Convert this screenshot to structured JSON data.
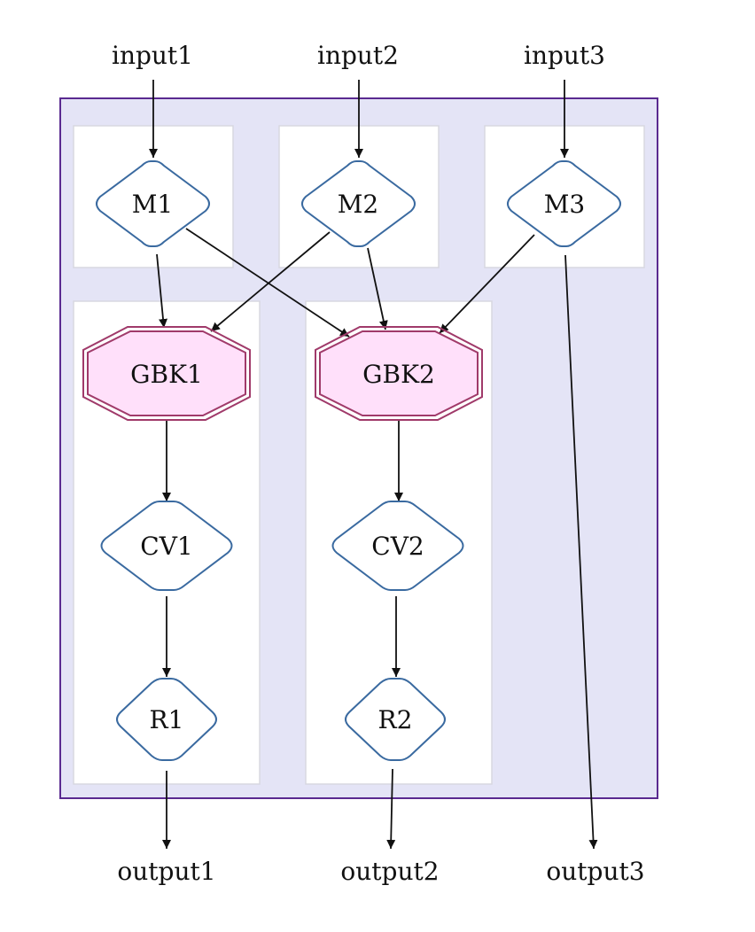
{
  "inputs": {
    "input1": "input1",
    "input2": "input2",
    "input3": "input3"
  },
  "outputs": {
    "output1": "output1",
    "output2": "output2",
    "output3": "output3"
  },
  "nodes": {
    "M1": "M1",
    "M2": "M2",
    "M3": "M3",
    "GBK1": "GBK1",
    "GBK2": "GBK2",
    "CV1": "CV1",
    "CV2": "CV2",
    "R1": "R1",
    "R2": "R2"
  },
  "colors": {
    "outer_cluster_fill": "#e4e4f6",
    "outer_cluster_border": "#5a2a90",
    "inner_cluster_fill": "#ffffff",
    "node_border": "#3a6aa0",
    "gbk_fill": "#ffe0fa",
    "gbk_border": "#a03a6a",
    "edge": "#111111"
  },
  "edges": [
    [
      "input1",
      "M1"
    ],
    [
      "input2",
      "M2"
    ],
    [
      "input3",
      "M3"
    ],
    [
      "M1",
      "GBK1"
    ],
    [
      "M1",
      "GBK2"
    ],
    [
      "M2",
      "GBK1"
    ],
    [
      "M2",
      "GBK2"
    ],
    [
      "M3",
      "GBK2"
    ],
    [
      "M3",
      "output3"
    ],
    [
      "GBK1",
      "CV1"
    ],
    [
      "CV1",
      "R1"
    ],
    [
      "R1",
      "output1"
    ],
    [
      "GBK2",
      "CV2"
    ],
    [
      "CV2",
      "R2"
    ],
    [
      "R2",
      "output2"
    ]
  ]
}
